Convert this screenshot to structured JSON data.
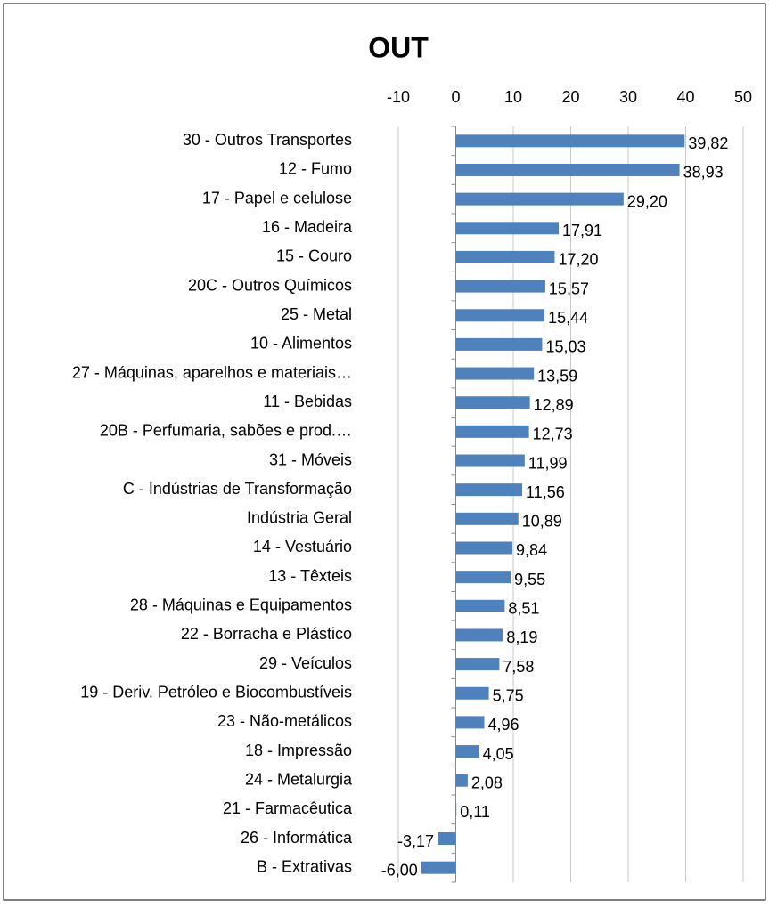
{
  "chart_data": {
    "type": "bar",
    "orientation": "horizontal",
    "title": "OUT",
    "categories": [
      "30 - Outros Transportes",
      "12 - Fumo",
      "17 - Papel e celulose",
      "16 - Madeira",
      "15 - Couro",
      "20C - Outros Químicos",
      "25 - Metal",
      "10 - Alimentos",
      "27 - Máquinas, aparelhos e materiais…",
      "11 - Bebidas",
      "20B - Perfumaria, sabões e prod.…",
      "31 - Móveis",
      "C - Indústrias de Transformação",
      "Indústria Geral",
      "14 - Vestuário",
      "13 - Têxteis",
      "28 - Máquinas e Equipamentos",
      "22 - Borracha e Plástico",
      "29 - Veículos",
      "19 - Deriv. Petróleo e Biocombustíveis",
      "23 - Não-metálicos",
      "18 - Impressão",
      "24 - Metalurgia",
      "21 - Farmacêutica",
      "26 - Informática",
      "B - Extrativas"
    ],
    "values": [
      39.82,
      38.93,
      29.2,
      17.91,
      17.2,
      15.57,
      15.44,
      15.03,
      13.59,
      12.89,
      12.73,
      11.99,
      11.56,
      10.89,
      9.84,
      9.55,
      8.51,
      8.19,
      7.58,
      5.75,
      4.96,
      4.05,
      2.08,
      0.11,
      -3.17,
      -6.0
    ],
    "value_labels": [
      "39,82",
      "38,93",
      "29,20",
      "17,91",
      "17,20",
      "15,57",
      "15,44",
      "15,03",
      "13,59",
      "12,89",
      "12,73",
      "11,99",
      "11,56",
      "10,89",
      "9,84",
      "9,55",
      "8,51",
      "8,19",
      "7,58",
      "5,75",
      "4,96",
      "4,05",
      "2,08",
      "0,11",
      "-3,17",
      "-6,00"
    ],
    "color": "#4f81bd",
    "xlim": [
      -10,
      50
    ],
    "xticks": [
      -10,
      0,
      10,
      20,
      30,
      40,
      50
    ],
    "grid": true
  }
}
